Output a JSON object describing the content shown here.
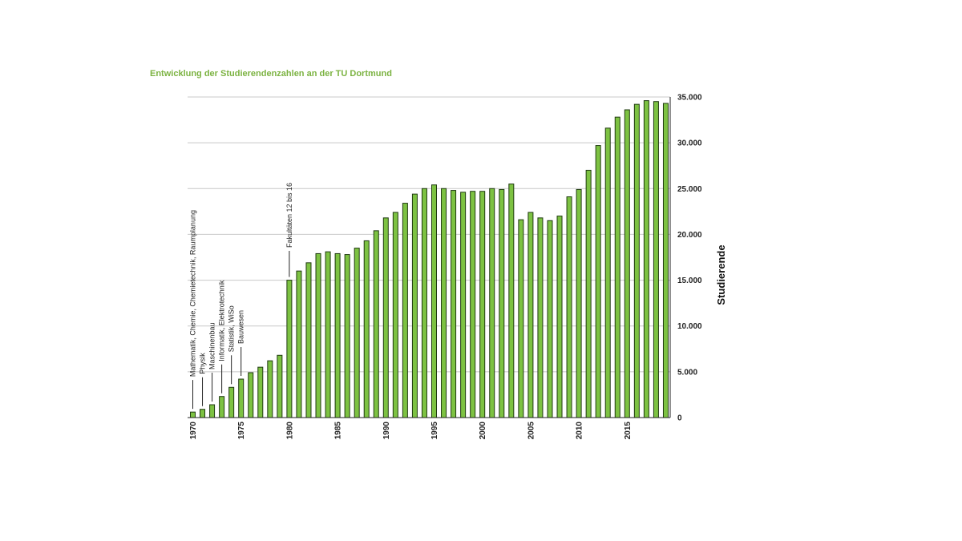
{
  "chart_data": {
    "type": "bar",
    "title": "Entwicklung der Studierendenzahlen an der TU Dortmund",
    "xlabel": "",
    "ylabel": "Studierende",
    "ylim": [
      0,
      35000
    ],
    "yticks": [
      0,
      5000,
      10000,
      15000,
      20000,
      25000,
      30000,
      35000
    ],
    "ytick_labels": [
      "0",
      "5.000",
      "10.000",
      "15.000",
      "20.000",
      "25.000",
      "30.000",
      "35.000"
    ],
    "xtick_years": [
      1970,
      1975,
      1980,
      1985,
      1990,
      1995,
      2000,
      2005,
      2010,
      2015
    ],
    "xtick_labels": [
      "1970",
      "1975",
      "1980",
      "1985",
      "1990",
      "1995",
      "2000",
      "2005",
      "2010",
      "2015"
    ],
    "grid": true,
    "categories": [
      1970,
      1971,
      1972,
      1973,
      1974,
      1975,
      1976,
      1977,
      1978,
      1979,
      1980,
      1981,
      1982,
      1983,
      1984,
      1985,
      1986,
      1987,
      1988,
      1989,
      1990,
      1991,
      1992,
      1993,
      1994,
      1995,
      1996,
      1997,
      1998,
      1999,
      2000,
      2001,
      2002,
      2003,
      2004,
      2005,
      2006,
      2007,
      2008,
      2009,
      2010,
      2011,
      2012,
      2013,
      2014,
      2015,
      2016,
      2017,
      2018,
      2019
    ],
    "values": [
      600,
      900,
      1400,
      2300,
      3300,
      4200,
      4900,
      5500,
      6200,
      6800,
      15000,
      16000,
      16900,
      17900,
      18100,
      17900,
      17800,
      18500,
      19300,
      20400,
      21800,
      22400,
      23400,
      24400,
      25000,
      25400,
      25000,
      24800,
      24600,
      24700,
      24700,
      25000,
      24900,
      25500,
      21600,
      22400,
      21800,
      21500,
      22000,
      24100,
      24900,
      27000,
      29700,
      31600,
      32800,
      33600,
      34200,
      34600,
      34500,
      34300
    ],
    "annotations": [
      {
        "year": 1970,
        "text": "Mathematik, Chemie, Chemietechnik, Raumplanung"
      },
      {
        "year": 1971,
        "text": "Physik"
      },
      {
        "year": 1972,
        "text": "Maschinenbau"
      },
      {
        "year": 1973,
        "text": "Informatik, Elektrotechnik"
      },
      {
        "year": 1974,
        "text": "Statistik, WiSo"
      },
      {
        "year": 1975,
        "text": "Bauwesen"
      },
      {
        "year": 1980,
        "text": "Fakultäten 12 bis 16"
      }
    ],
    "colors": {
      "bar": "#7dc242",
      "bar_border": "#1f3a10",
      "title": "#7cb342"
    }
  }
}
